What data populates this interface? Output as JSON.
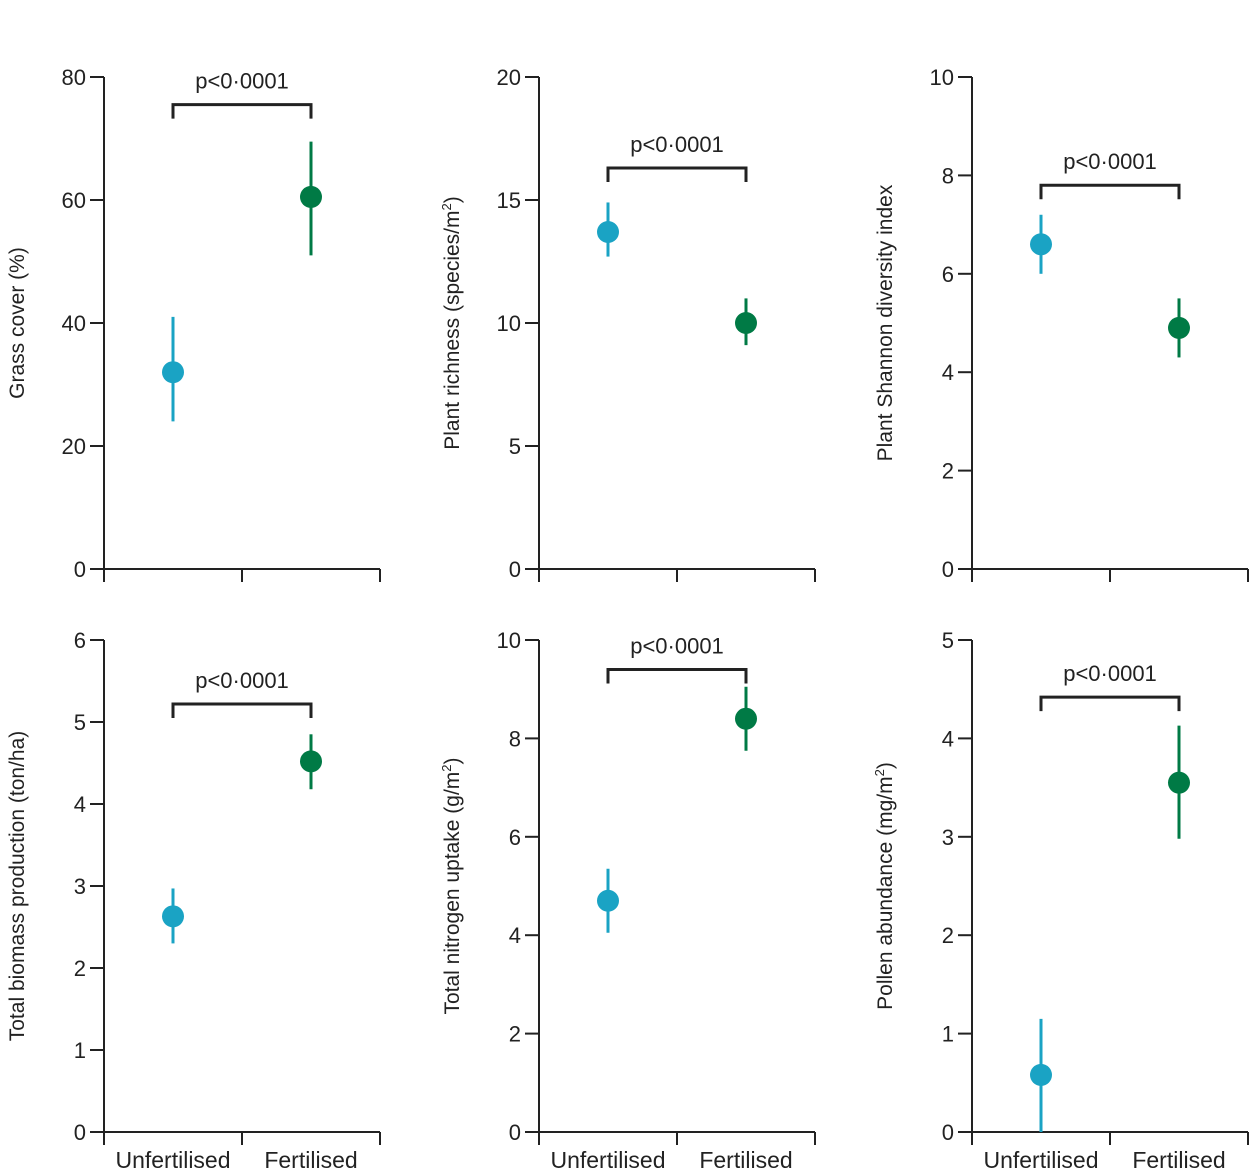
{
  "colors": {
    "unfertilised": "#1aa3c4",
    "fertilised": "#007a45",
    "axis": "#222222"
  },
  "categories": [
    "Unfertilised",
    "Fertilised"
  ],
  "chart_data": [
    {
      "type": "scatter",
      "ylabel": "Grass cover (%)",
      "ylabel_sup": "",
      "ylabel_after": "",
      "ylim": [
        0,
        80
      ],
      "yticks": [
        0,
        20,
        40,
        60,
        80
      ],
      "series": [
        {
          "name": "Unfertilised",
          "mean": 32,
          "low": 24,
          "high": 41
        },
        {
          "name": "Fertilised",
          "mean": 60.5,
          "low": 51,
          "high": 69.5
        }
      ],
      "significance": {
        "label": "p<0·0001",
        "y": 75.5
      },
      "show_categories": false
    },
    {
      "type": "scatter",
      "ylabel": "Plant richness (species/m",
      "ylabel_sup": "2",
      "ylabel_after": ")",
      "ylim": [
        0,
        20
      ],
      "yticks": [
        0,
        5,
        10,
        15,
        20
      ],
      "series": [
        {
          "name": "Unfertilised",
          "mean": 13.7,
          "low": 12.7,
          "high": 14.9
        },
        {
          "name": "Fertilised",
          "mean": 10.0,
          "low": 9.1,
          "high": 11.0
        }
      ],
      "significance": {
        "label": "p<0·0001",
        "y": 16.3
      },
      "show_categories": false
    },
    {
      "type": "scatter",
      "ylabel": "Plant Shannon diversity index",
      "ylabel_sup": "",
      "ylabel_after": "",
      "ylim": [
        0,
        10
      ],
      "yticks": [
        0,
        2,
        4,
        6,
        8,
        10
      ],
      "series": [
        {
          "name": "Unfertilised",
          "mean": 6.6,
          "low": 6.0,
          "high": 7.2
        },
        {
          "name": "Fertilised",
          "mean": 4.9,
          "low": 4.3,
          "high": 5.5
        }
      ],
      "significance": {
        "label": "p<0·0001",
        "y": 7.8
      },
      "show_categories": false
    },
    {
      "type": "scatter",
      "ylabel": "Total biomass production (ton/ha)",
      "ylabel_sup": "",
      "ylabel_after": "",
      "ylim": [
        0,
        6
      ],
      "yticks": [
        0,
        1,
        2,
        3,
        4,
        5,
        6
      ],
      "series": [
        {
          "name": "Unfertilised",
          "mean": 2.63,
          "low": 2.3,
          "high": 2.97
        },
        {
          "name": "Fertilised",
          "mean": 4.52,
          "low": 4.18,
          "high": 4.85
        }
      ],
      "significance": {
        "label": "p<0·0001",
        "y": 5.22
      },
      "show_categories": true
    },
    {
      "type": "scatter",
      "ylabel": "Total nitrogen uptake (g/m",
      "ylabel_sup": "2",
      "ylabel_after": ")",
      "ylim": [
        0,
        10
      ],
      "yticks": [
        0,
        2,
        4,
        6,
        8,
        10
      ],
      "series": [
        {
          "name": "Unfertilised",
          "mean": 4.7,
          "low": 4.05,
          "high": 5.35
        },
        {
          "name": "Fertilised",
          "mean": 8.4,
          "low": 7.75,
          "high": 9.05
        }
      ],
      "significance": {
        "label": "p<0·0001",
        "y": 9.4
      },
      "show_categories": true
    },
    {
      "type": "scatter",
      "ylabel": "Pollen abundance (mg/m",
      "ylabel_sup": "2",
      "ylabel_after": ")",
      "ylim": [
        0,
        5
      ],
      "yticks": [
        0,
        1,
        2,
        3,
        4,
        5
      ],
      "series": [
        {
          "name": "Unfertilised",
          "mean": 0.58,
          "low": 0.0,
          "high": 1.15
        },
        {
          "name": "Fertilised",
          "mean": 3.55,
          "low": 2.98,
          "high": 4.13
        }
      ],
      "significance": {
        "label": "p<0·0001",
        "y": 4.42
      },
      "show_categories": true
    }
  ]
}
